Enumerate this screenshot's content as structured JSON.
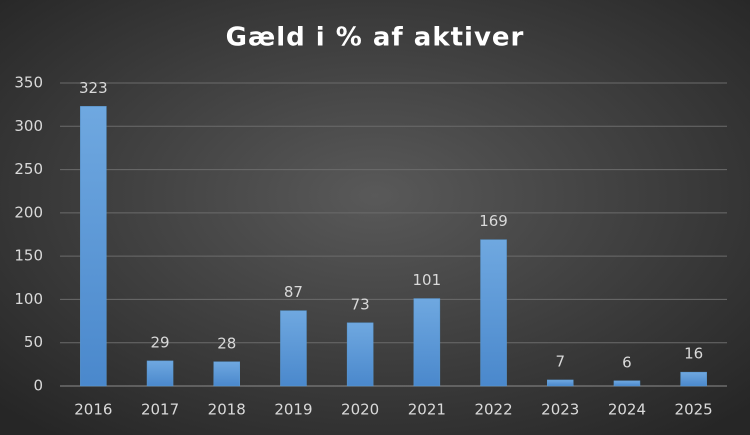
{
  "chart_data": {
    "type": "bar",
    "title": "Gæld i % af aktiver",
    "categories": [
      "2016",
      "2017",
      "2018",
      "2019",
      "2020",
      "2021",
      "2022",
      "2023",
      "2024",
      "2025"
    ],
    "values": [
      323,
      29,
      28,
      87,
      73,
      101,
      169,
      7,
      6,
      16
    ],
    "color": "#5b9bd5",
    "ylim": [
      0,
      350
    ],
    "yticks": [
      0,
      50,
      100,
      150,
      200,
      250,
      300,
      350
    ],
    "grid": true
  }
}
